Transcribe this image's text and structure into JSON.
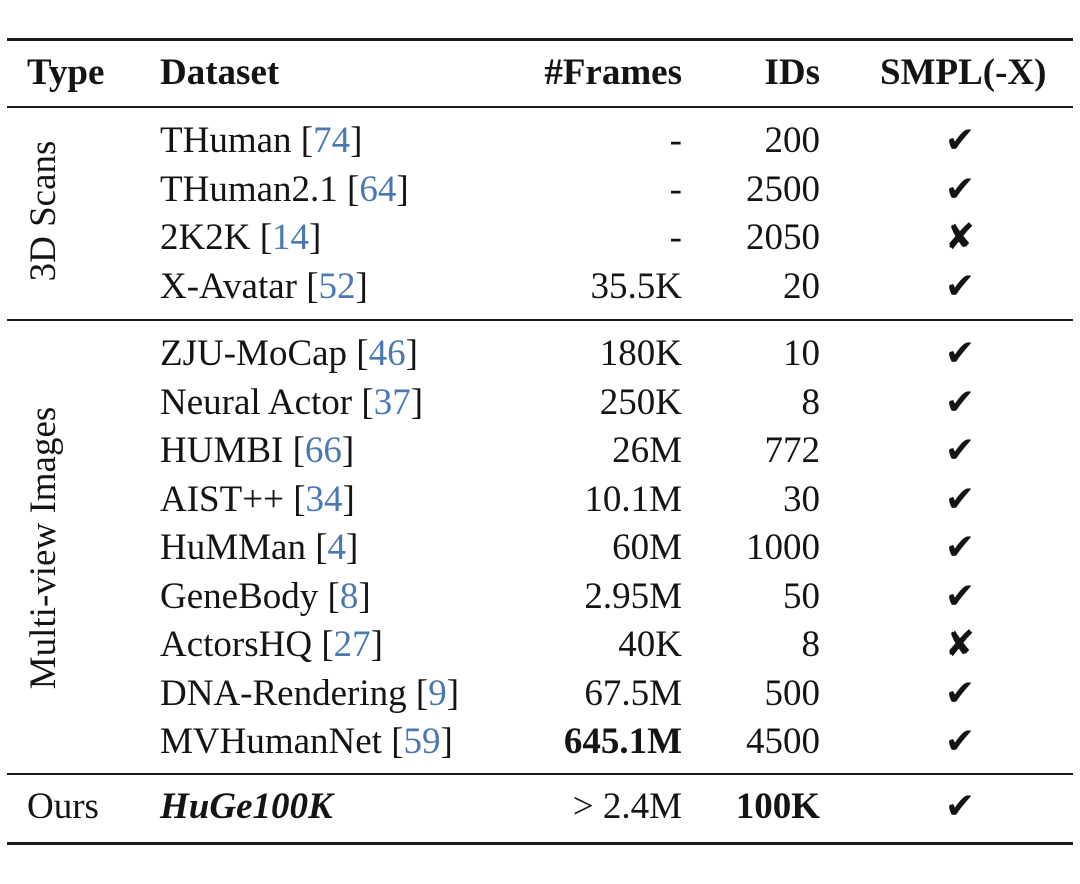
{
  "headers": {
    "type": "Type",
    "dataset": "Dataset",
    "frames": "#Frames",
    "ids": "IDs",
    "smpl": "SMPL(-X)"
  },
  "groups": [
    {
      "label": "3D Scans",
      "rows": [
        {
          "name": "THuman",
          "ref": "74",
          "frames": "-",
          "ids": "200",
          "smpl": "✔"
        },
        {
          "name": "THuman2.1",
          "ref": "64",
          "frames": "-",
          "ids": "2500",
          "smpl": "✔"
        },
        {
          "name": "2K2K",
          "ref": "14",
          "frames": "-",
          "ids": "2050",
          "smpl": "✘"
        },
        {
          "name": "X-Avatar",
          "ref": "52",
          "frames": "35.5K",
          "ids": "20",
          "smpl": "✔"
        }
      ]
    },
    {
      "label": "Multi-view Images",
      "rows": [
        {
          "name": "ZJU-MoCap",
          "ref": "46",
          "frames": "180K",
          "ids": "10",
          "smpl": "✔"
        },
        {
          "name": "Neural Actor",
          "ref": "37",
          "frames": "250K",
          "ids": "8",
          "smpl": "✔"
        },
        {
          "name": "HUMBI",
          "ref": "66",
          "frames": "26M",
          "ids": "772",
          "smpl": "✔"
        },
        {
          "name": "AIST++",
          "ref": "34",
          "frames": "10.1M",
          "ids": "30",
          "smpl": "✔"
        },
        {
          "name": "HuMMan",
          "ref": "4",
          "frames": "60M",
          "ids": "1000",
          "smpl": "✔"
        },
        {
          "name": "GeneBody",
          "ref": "8",
          "frames": "2.95M",
          "ids": "50",
          "smpl": "✔"
        },
        {
          "name": "ActorsHQ",
          "ref": "27",
          "frames": "40K",
          "ids": "8",
          "smpl": "✘"
        },
        {
          "name": "DNA-Rendering",
          "ref": "9",
          "frames": "67.5M",
          "ids": "500",
          "smpl": "✔"
        },
        {
          "name": "MVHumanNet",
          "ref": "59",
          "frames": "645.1M",
          "ids": "4500",
          "smpl": "✔"
        }
      ]
    }
  ],
  "ours": {
    "type": "Ours",
    "name": "HuGe100K",
    "frames": "> 2.4M",
    "ids": "100K",
    "smpl": "✔"
  }
}
